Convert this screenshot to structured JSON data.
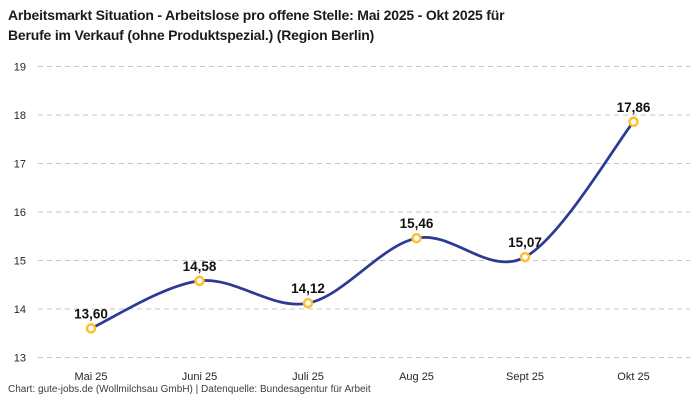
{
  "header": {
    "title_line1": "Arbeitsmarkt Situation - Arbeitslose pro offene Stelle: Mai 2025 - Okt 2025 für",
    "title_line2": "Berufe im Verkauf (ohne Produktspezial.) (Region Berlin)"
  },
  "footer": {
    "text": "Chart: gute-jobs.de (Wollmilchsau GmbH) | Datenquelle: Bundesagentur für Arbeit"
  },
  "colors": {
    "line": "#2b3a94",
    "marker_stroke": "#fcc22d",
    "marker_fill": "#ffffff",
    "grid": "#c6c6c6",
    "tick_text": "#262626",
    "value_text": "#111111"
  },
  "chart_data": {
    "type": "line",
    "title": "Arbeitsmarkt Situation - Arbeitslose pro offene Stelle: Mai 2025 - Okt 2025 für Berufe im Verkauf (ohne Produktspezial.) (Region Berlin)",
    "categories": [
      "Mai 25",
      "Juni 25",
      "Juli 25",
      "Aug 25",
      "Sept 25",
      "Okt 25"
    ],
    "values": [
      13.6,
      14.58,
      14.12,
      15.46,
      15.07,
      17.86
    ],
    "value_labels": [
      "13,60",
      "14,58",
      "14,12",
      "15,46",
      "15,07",
      "17,86"
    ],
    "xlabel": "",
    "ylabel": "",
    "ylim": [
      13,
      19
    ],
    "yticks": [
      13,
      14,
      15,
      16,
      17,
      18,
      19
    ],
    "grid": "horizontal-dashed",
    "legend": "none",
    "curve": "smooth-spline",
    "source_note": "Chart: gute-jobs.de (Wollmilchsau GmbH) | Datenquelle: Bundesagentur für Arbeit"
  }
}
